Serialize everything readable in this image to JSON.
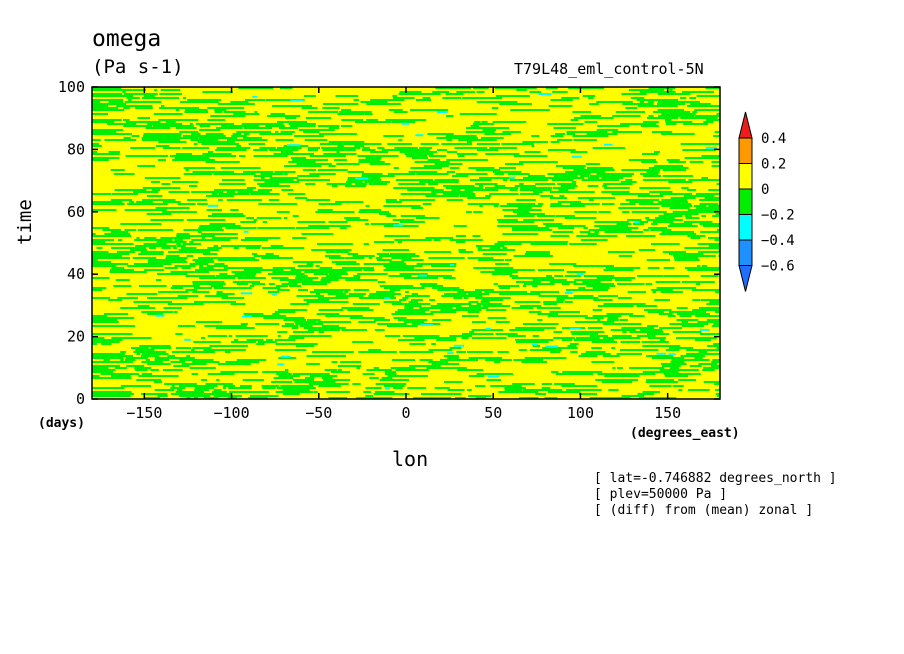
{
  "chart_data": {
    "type": "heatmap",
    "title": "omega",
    "units": "(Pa s-1)",
    "run_label": "T79L48_eml_control-5N",
    "xlabel": "lon",
    "ylabel": "time",
    "x_tick_unit": "(degrees_east)",
    "y_tick_unit": "(days)",
    "xlim": [
      -180,
      180
    ],
    "ylim": [
      0,
      100
    ],
    "x_ticks": [
      -150,
      -100,
      -50,
      0,
      50,
      100,
      150
    ],
    "x_tick_labels": [
      "−150",
      "−100",
      "−50",
      "0",
      "50",
      "100",
      "150"
    ],
    "y_ticks": [
      0,
      20,
      40,
      60,
      80,
      100
    ],
    "y_tick_labels": [
      "0",
      "20",
      "40",
      "60",
      "80",
      "100"
    ],
    "colorbar": {
      "levels": [
        0.4,
        0.2,
        0,
        -0.2,
        -0.4,
        -0.6
      ],
      "level_labels": [
        "0.4",
        "0.2",
        "0",
        "−0.2",
        "−0.4",
        "−0.6"
      ],
      "colors": [
        "#ee1c1c",
        "#ff9900",
        "#ffff00",
        "#00ee00",
        "#00ffff",
        "#1e90ff",
        "#1e6fff"
      ]
    },
    "notes": [
      "[ lat=-0.746882 degrees_north ]",
      "[ plev=50000 Pa ]",
      "[ (diff) from (mean) zonal ]"
    ]
  }
}
